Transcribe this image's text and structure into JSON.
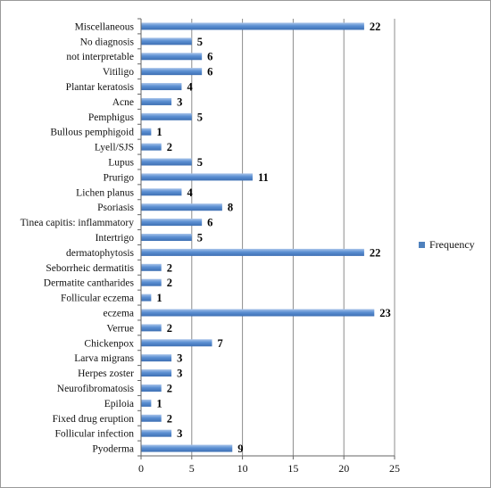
{
  "chart_data": {
    "type": "bar",
    "orientation": "horizontal",
    "categories": [
      "Miscellaneous",
      "No diagnosis",
      "not interpretable",
      "Vitiligo",
      "Plantar keratosis",
      "Acne",
      "Pemphigus",
      "Bullous pemphigoid",
      "Lyell/SJS",
      "Lupus",
      "Prurigo",
      "Lichen planus",
      "Psoriasis",
      "Tinea capitis: inflammatory",
      "Intertrigo",
      "dermatophytosis",
      "Seborrheic dermatitis",
      "Dermatite cantharides",
      "Follicular eczema",
      "eczema",
      "Verrue",
      "Chickenpox",
      "Larva migrans",
      "Herpes zoster",
      "Neurofibromatosis",
      "Epiloia",
      "Fixed  drug eruption",
      "Follicular infection",
      "Pyoderma"
    ],
    "series": [
      {
        "name": "Frequency",
        "values": [
          22,
          5,
          6,
          6,
          4,
          3,
          5,
          1,
          2,
          5,
          11,
          4,
          8,
          6,
          5,
          22,
          2,
          2,
          1,
          23,
          2,
          7,
          3,
          3,
          2,
          1,
          2,
          3,
          9
        ],
        "color": "#4f81bd"
      }
    ],
    "xlim": [
      0,
      25
    ],
    "xticks": [
      0,
      5,
      10,
      15,
      20,
      25
    ],
    "grid": "vertical",
    "legend_position": "right",
    "data_labels": true
  }
}
